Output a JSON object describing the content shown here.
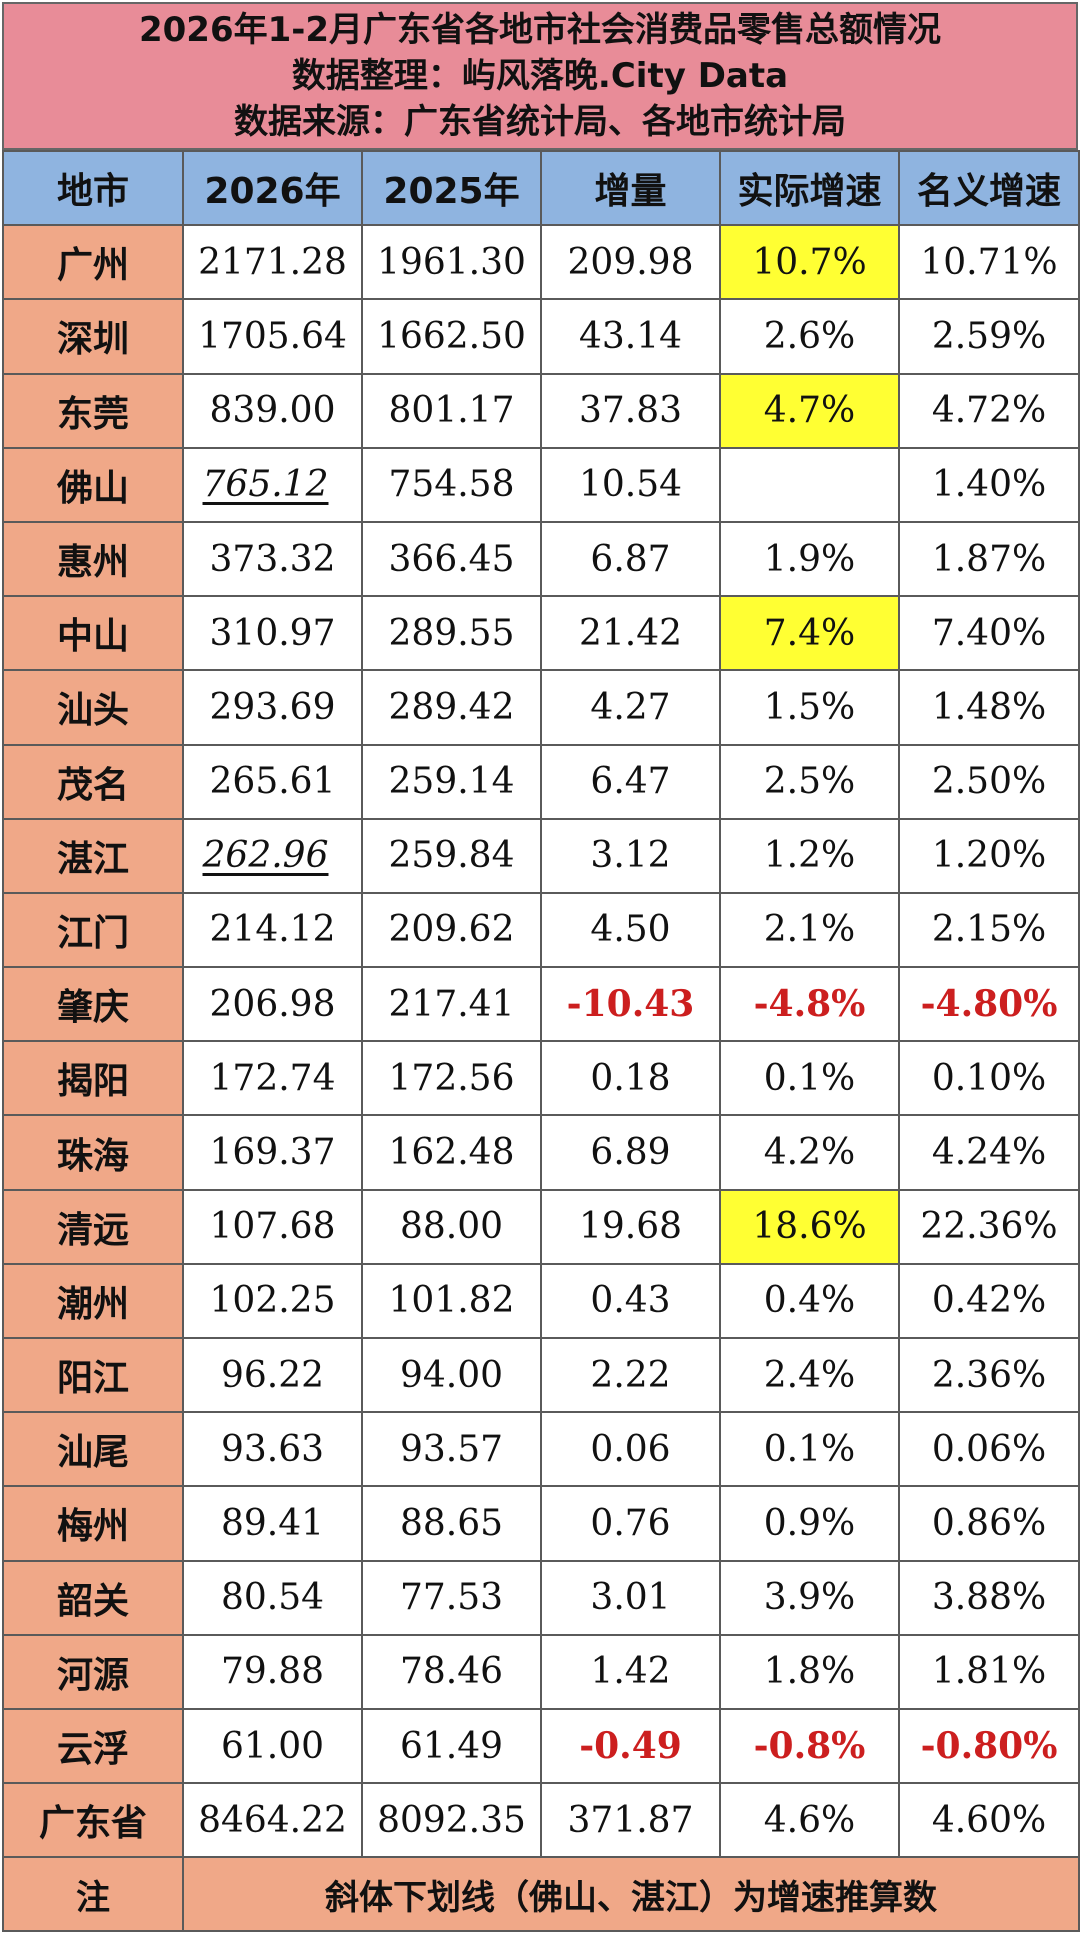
{
  "title": {
    "line1": "2026年1-2月广东省各地市社会消费品零售总额情况",
    "line2": "数据整理：屿风落晚.City Data",
    "line3": "数据来源：广东省统计局、各地市统计局"
  },
  "colors": {
    "title_bg": "#e88c98",
    "header_bg": "#8fb4e0",
    "city_bg": "#f0a888",
    "highlight": "#ffff33",
    "negative": "#cc1f1f"
  },
  "headers": [
    "地市",
    "2026年",
    "2025年",
    "增量",
    "实际增速",
    "名义增速"
  ],
  "rows": [
    {
      "city": "广州",
      "y2026": "2171.28",
      "y2025": "1961.30",
      "delta": "209.98",
      "real": "10.7%",
      "nominal": "10.71%",
      "highlight_real": true
    },
    {
      "city": "深圳",
      "y2026": "1705.64",
      "y2025": "1662.50",
      "delta": "43.14",
      "real": "2.6%",
      "nominal": "2.59%"
    },
    {
      "city": "东莞",
      "y2026": "839.00",
      "y2025": "801.17",
      "delta": "37.83",
      "real": "4.7%",
      "nominal": "4.72%",
      "highlight_real": true
    },
    {
      "city": "佛山",
      "y2026": "765.12",
      "y2025": "754.58",
      "delta": "10.54",
      "real": "",
      "nominal": "1.40%",
      "estimated": true
    },
    {
      "city": "惠州",
      "y2026": "373.32",
      "y2025": "366.45",
      "delta": "6.87",
      "real": "1.9%",
      "nominal": "1.87%"
    },
    {
      "city": "中山",
      "y2026": "310.97",
      "y2025": "289.55",
      "delta": "21.42",
      "real": "7.4%",
      "nominal": "7.40%",
      "highlight_real": true
    },
    {
      "city": "汕头",
      "y2026": "293.69",
      "y2025": "289.42",
      "delta": "4.27",
      "real": "1.5%",
      "nominal": "1.48%"
    },
    {
      "city": "茂名",
      "y2026": "265.61",
      "y2025": "259.14",
      "delta": "6.47",
      "real": "2.5%",
      "nominal": "2.50%"
    },
    {
      "city": "湛江",
      "y2026": "262.96",
      "y2025": "259.84",
      "delta": "3.12",
      "real": "1.2%",
      "nominal": "1.20%",
      "estimated": true
    },
    {
      "city": "江门",
      "y2026": "214.12",
      "y2025": "209.62",
      "delta": "4.50",
      "real": "2.1%",
      "nominal": "2.15%"
    },
    {
      "city": "肇庆",
      "y2026": "206.98",
      "y2025": "217.41",
      "delta": "-10.43",
      "real": "-4.8%",
      "nominal": "-4.80%",
      "negative": true
    },
    {
      "city": "揭阳",
      "y2026": "172.74",
      "y2025": "172.56",
      "delta": "0.18",
      "real": "0.1%",
      "nominal": "0.10%"
    },
    {
      "city": "珠海",
      "y2026": "169.37",
      "y2025": "162.48",
      "delta": "6.89",
      "real": "4.2%",
      "nominal": "4.24%"
    },
    {
      "city": "清远",
      "y2026": "107.68",
      "y2025": "88.00",
      "delta": "19.68",
      "real": "18.6%",
      "nominal": "22.36%",
      "highlight_real": true
    },
    {
      "city": "潮州",
      "y2026": "102.25",
      "y2025": "101.82",
      "delta": "0.43",
      "real": "0.4%",
      "nominal": "0.42%"
    },
    {
      "city": "阳江",
      "y2026": "96.22",
      "y2025": "94.00",
      "delta": "2.22",
      "real": "2.4%",
      "nominal": "2.36%"
    },
    {
      "city": "汕尾",
      "y2026": "93.63",
      "y2025": "93.57",
      "delta": "0.06",
      "real": "0.1%",
      "nominal": "0.06%"
    },
    {
      "city": "梅州",
      "y2026": "89.41",
      "y2025": "88.65",
      "delta": "0.76",
      "real": "0.9%",
      "nominal": "0.86%"
    },
    {
      "city": "韶关",
      "y2026": "80.54",
      "y2025": "77.53",
      "delta": "3.01",
      "real": "3.9%",
      "nominal": "3.88%"
    },
    {
      "city": "河源",
      "y2026": "79.88",
      "y2025": "78.46",
      "delta": "1.42",
      "real": "1.8%",
      "nominal": "1.81%"
    },
    {
      "city": "云浮",
      "y2026": "61.00",
      "y2025": "61.49",
      "delta": "-0.49",
      "real": "-0.8%",
      "nominal": "-0.80%",
      "negative": true
    },
    {
      "city": "广东省",
      "y2026": "8464.22",
      "y2025": "8092.35",
      "delta": "371.87",
      "real": "4.6%",
      "nominal": "4.60%"
    }
  ],
  "note": {
    "label": "注",
    "text": "斜体下划线（佛山、湛江）为增速推算数"
  }
}
